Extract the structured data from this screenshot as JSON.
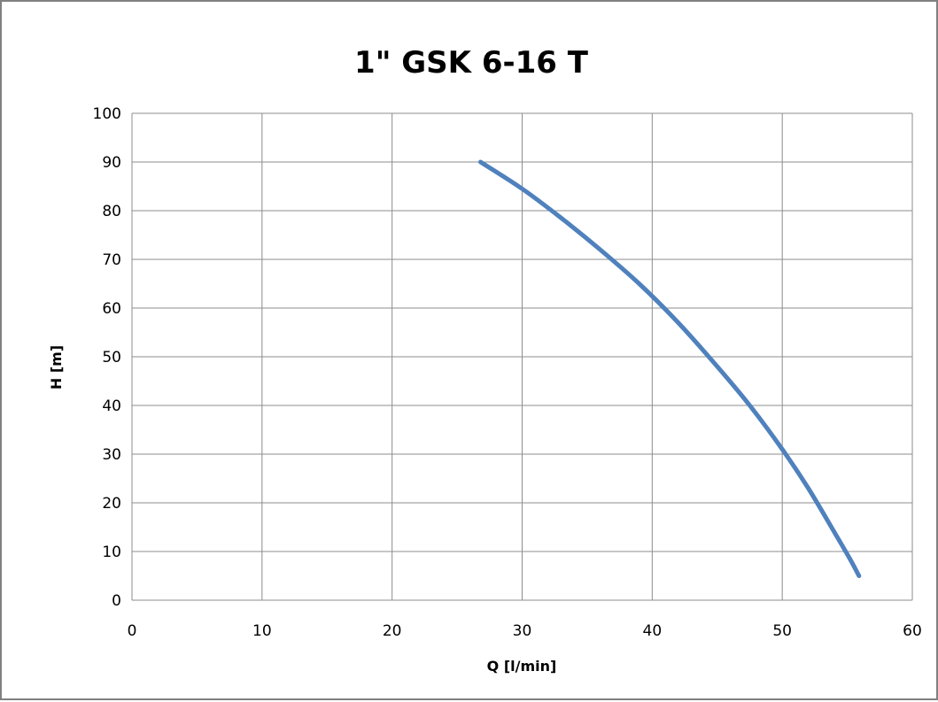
{
  "chart_data": {
    "type": "line",
    "title": "1\" GSK 6-16 T",
    "xlabel": "Q [l/min]",
    "ylabel": "H [m]",
    "xlim": [
      0,
      60
    ],
    "ylim": [
      0,
      100
    ],
    "xticks": [
      0,
      10,
      20,
      30,
      40,
      50,
      60
    ],
    "yticks": [
      0,
      10,
      20,
      30,
      40,
      50,
      60,
      70,
      80,
      90,
      100
    ],
    "grid": true,
    "legend": "none",
    "series": [
      {
        "color": "#4f81bd",
        "x": [
          26.8,
          30,
          33,
          36,
          39,
          42,
          45,
          47.5,
          50,
          52,
          54,
          55.2,
          55.9
        ],
        "y": [
          90,
          84.5,
          78.5,
          72,
          65,
          57,
          48,
          40,
          31,
          23,
          14,
          8.5,
          5
        ]
      }
    ]
  }
}
